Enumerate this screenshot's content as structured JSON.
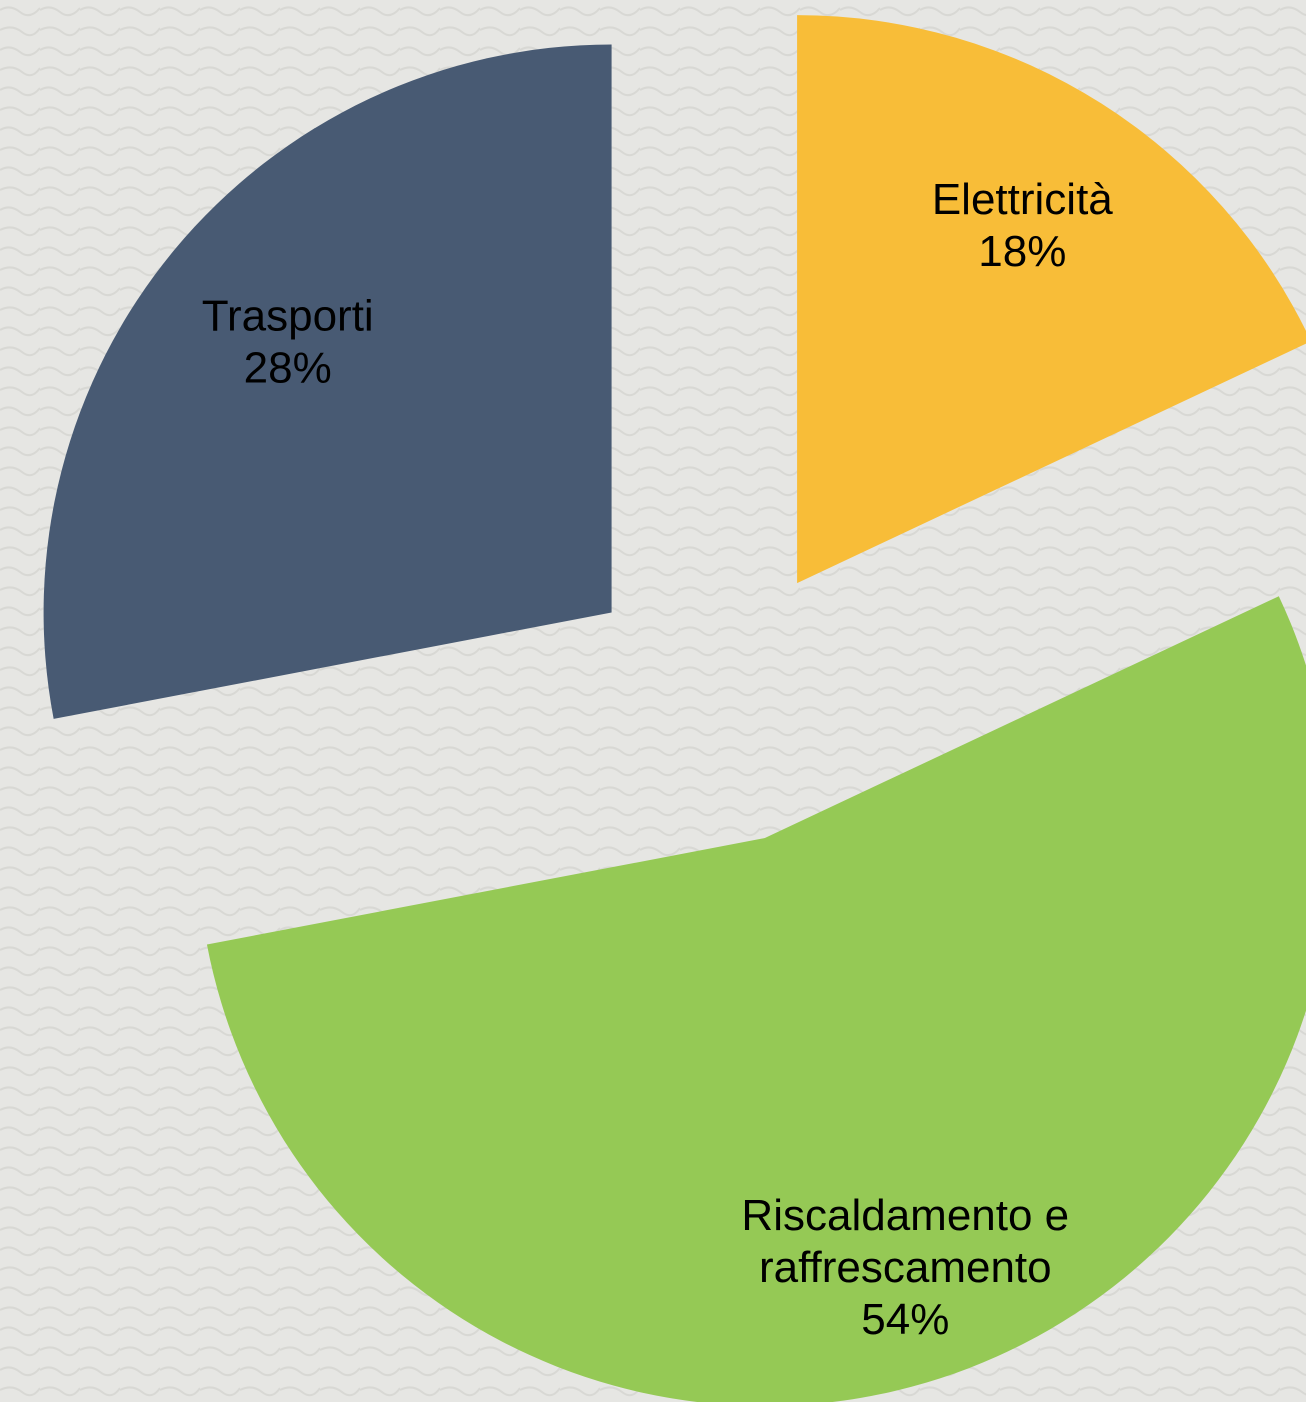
{
  "chart_data": {
    "type": "pie",
    "categories": [
      "Elettricità",
      "Riscaldamento e raffrescamento",
      "Trasporti"
    ],
    "values": [
      18,
      54,
      28
    ],
    "value_labels": [
      "18%",
      "54%",
      "28%"
    ],
    "colors": [
      "#f8bd38",
      "#95c955",
      "#485a73"
    ],
    "start_angle": 0,
    "direction": "clockwise",
    "exploded": true
  }
}
